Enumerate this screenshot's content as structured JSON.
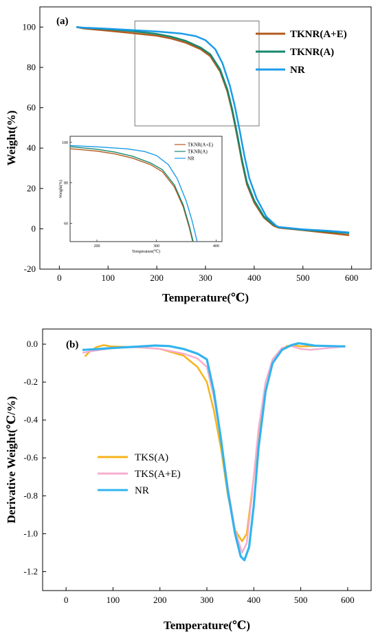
{
  "chart_data": [
    {
      "type": "line",
      "panel_label": "(a)",
      "xlabel": "Temperature(℃)",
      "ylabel": "Weight(%)",
      "xlim": [
        -40,
        640
      ],
      "ylim": [
        -20,
        110
      ],
      "x_ticks": [
        0,
        100,
        200,
        300,
        400,
        500,
        600
      ],
      "y_ticks": [
        -20,
        0,
        20,
        40,
        60,
        80,
        100
      ],
      "legend_position": "top-right",
      "series": [
        {
          "name": "TKNR(A+E)",
          "color": "#b35a1f",
          "points": [
            [
              35,
              100
            ],
            [
              50,
              99.3
            ],
            [
              100,
              98.2
            ],
            [
              150,
              97.0
            ],
            [
              200,
              95.7
            ],
            [
              230,
              94.3
            ],
            [
              260,
              92.2
            ],
            [
              290,
              89.0
            ],
            [
              310,
              85.5
            ],
            [
              330,
              78.0
            ],
            [
              345,
              68.0
            ],
            [
              355,
              58.0
            ],
            [
              365,
              46.0
            ],
            [
              375,
              33.0
            ],
            [
              385,
              22.0
            ],
            [
              400,
              13.0
            ],
            [
              420,
              5.5
            ],
            [
              440,
              1.5
            ],
            [
              450,
              0.5
            ],
            [
              500,
              -0.7
            ],
            [
              550,
              -2.0
            ],
            [
              595,
              -3.2
            ]
          ]
        },
        {
          "name": "TKNR(A)",
          "color": "#17876e",
          "points": [
            [
              35,
              100
            ],
            [
              50,
              99.6
            ],
            [
              100,
              98.9
            ],
            [
              150,
              98.0
            ],
            [
              200,
              96.6
            ],
            [
              230,
              95.2
            ],
            [
              260,
              93.1
            ],
            [
              290,
              89.8
            ],
            [
              310,
              86.5
            ],
            [
              330,
              79.0
            ],
            [
              345,
              69.0
            ],
            [
              355,
              59.0
            ],
            [
              365,
              47.0
            ],
            [
              375,
              34.0
            ],
            [
              385,
              23.0
            ],
            [
              400,
              14.0
            ],
            [
              420,
              6.0
            ],
            [
              440,
              2.0
            ],
            [
              450,
              0.8
            ],
            [
              500,
              -0.5
            ],
            [
              550,
              -1.3
            ],
            [
              595,
              -2.2
            ]
          ]
        },
        {
          "name": "NR",
          "color": "#1a9be8",
          "points": [
            [
              35,
              100
            ],
            [
              50,
              99.7
            ],
            [
              100,
              99.2
            ],
            [
              150,
              98.5
            ],
            [
              200,
              97.8
            ],
            [
              250,
              96.8
            ],
            [
              280,
              95.5
            ],
            [
              300,
              93.5
            ],
            [
              320,
              89.0
            ],
            [
              335,
              82.0
            ],
            [
              350,
              71.0
            ],
            [
              360,
              61.0
            ],
            [
              370,
              49.0
            ],
            [
              380,
              36.0
            ],
            [
              390,
              25.0
            ],
            [
              405,
              15.0
            ],
            [
              425,
              6.0
            ],
            [
              445,
              1.5
            ],
            [
              450,
              0.9
            ],
            [
              500,
              -0.3
            ],
            [
              550,
              -1.0
            ],
            [
              595,
              -1.8
            ]
          ]
        }
      ],
      "zoom_box": {
        "x": [
          155,
          410
        ],
        "y": [
          51,
          103
        ]
      },
      "inset": {
        "xlim": [
          155,
          410
        ],
        "ylim": [
          51,
          103
        ],
        "x_ticks": [
          200,
          300,
          400
        ],
        "y_ticks": [
          60,
          80,
          100
        ],
        "xlabel": "Temperature(℃)",
        "ylabel": "Weight(%)"
      }
    },
    {
      "type": "line",
      "panel_label": "(b)",
      "xlabel": "Temperature(℃)",
      "ylabel": "Derivative Weight(℃/%)",
      "xlim": [
        -50,
        650
      ],
      "ylim": [
        -1.3,
        0.08
      ],
      "x_ticks": [
        0,
        100,
        200,
        300,
        400,
        500,
        600
      ],
      "y_ticks": [
        0.0,
        -0.2,
        -0.4,
        -0.6,
        -0.8,
        -1.0,
        -1.2
      ],
      "y_tick_labels": [
        "0.0",
        "-0.2",
        "-0.4",
        "-0.6",
        "-0.8",
        "-1.0",
        "-1.2"
      ],
      "legend_position": "middle-left",
      "series": [
        {
          "name": "TKS(A)",
          "color": "#f5b41a",
          "points": [
            [
              40,
              -0.065
            ],
            [
              50,
              -0.04
            ],
            [
              65,
              -0.015
            ],
            [
              80,
              -0.005
            ],
            [
              95,
              -0.012
            ],
            [
              150,
              -0.016
            ],
            [
              200,
              -0.025
            ],
            [
              250,
              -0.06
            ],
            [
              280,
              -0.12
            ],
            [
              300,
              -0.2
            ],
            [
              315,
              -0.35
            ],
            [
              330,
              -0.55
            ],
            [
              345,
              -0.8
            ],
            [
              360,
              -0.98
            ],
            [
              375,
              -1.04
            ],
            [
              385,
              -1.0
            ],
            [
              395,
              -0.8
            ],
            [
              410,
              -0.5
            ],
            [
              425,
              -0.25
            ],
            [
              440,
              -0.1
            ],
            [
              455,
              -0.04
            ],
            [
              470,
              -0.01
            ],
            [
              485,
              -0.005
            ],
            [
              500,
              -0.012
            ],
            [
              530,
              -0.01
            ],
            [
              595,
              -0.01
            ]
          ]
        },
        {
          "name": "TKS(A+E)",
          "color": "#f6aecf",
          "points": [
            [
              35,
              -0.045
            ],
            [
              60,
              -0.035
            ],
            [
              100,
              -0.02
            ],
            [
              150,
              -0.016
            ],
            [
              200,
              -0.025
            ],
            [
              250,
              -0.05
            ],
            [
              280,
              -0.075
            ],
            [
              300,
              -0.12
            ],
            [
              315,
              -0.28
            ],
            [
              330,
              -0.5
            ],
            [
              345,
              -0.76
            ],
            [
              360,
              -0.98
            ],
            [
              375,
              -1.1
            ],
            [
              385,
              -1.05
            ],
            [
              395,
              -0.82
            ],
            [
              410,
              -0.45
            ],
            [
              425,
              -0.2
            ],
            [
              440,
              -0.08
            ],
            [
              460,
              -0.02
            ],
            [
              480,
              -0.01
            ],
            [
              500,
              -0.025
            ],
            [
              520,
              -0.03
            ],
            [
              560,
              -0.02
            ],
            [
              595,
              -0.012
            ]
          ]
        },
        {
          "name": "NR",
          "color": "#31b4ee",
          "points": [
            [
              35,
              -0.03
            ],
            [
              60,
              -0.027
            ],
            [
              100,
              -0.02
            ],
            [
              150,
              -0.013
            ],
            [
              190,
              -0.007
            ],
            [
              220,
              -0.01
            ],
            [
              250,
              -0.025
            ],
            [
              280,
              -0.05
            ],
            [
              300,
              -0.08
            ],
            [
              315,
              -0.25
            ],
            [
              330,
              -0.5
            ],
            [
              345,
              -0.78
            ],
            [
              360,
              -1.0
            ],
            [
              372,
              -1.12
            ],
            [
              380,
              -1.14
            ],
            [
              390,
              -1.07
            ],
            [
              400,
              -0.85
            ],
            [
              410,
              -0.55
            ],
            [
              425,
              -0.25
            ],
            [
              440,
              -0.1
            ],
            [
              460,
              -0.03
            ],
            [
              480,
              -0.005
            ],
            [
              495,
              0.005
            ],
            [
              510,
              0.0
            ],
            [
              530,
              -0.008
            ],
            [
              595,
              -0.012
            ]
          ]
        }
      ]
    }
  ]
}
